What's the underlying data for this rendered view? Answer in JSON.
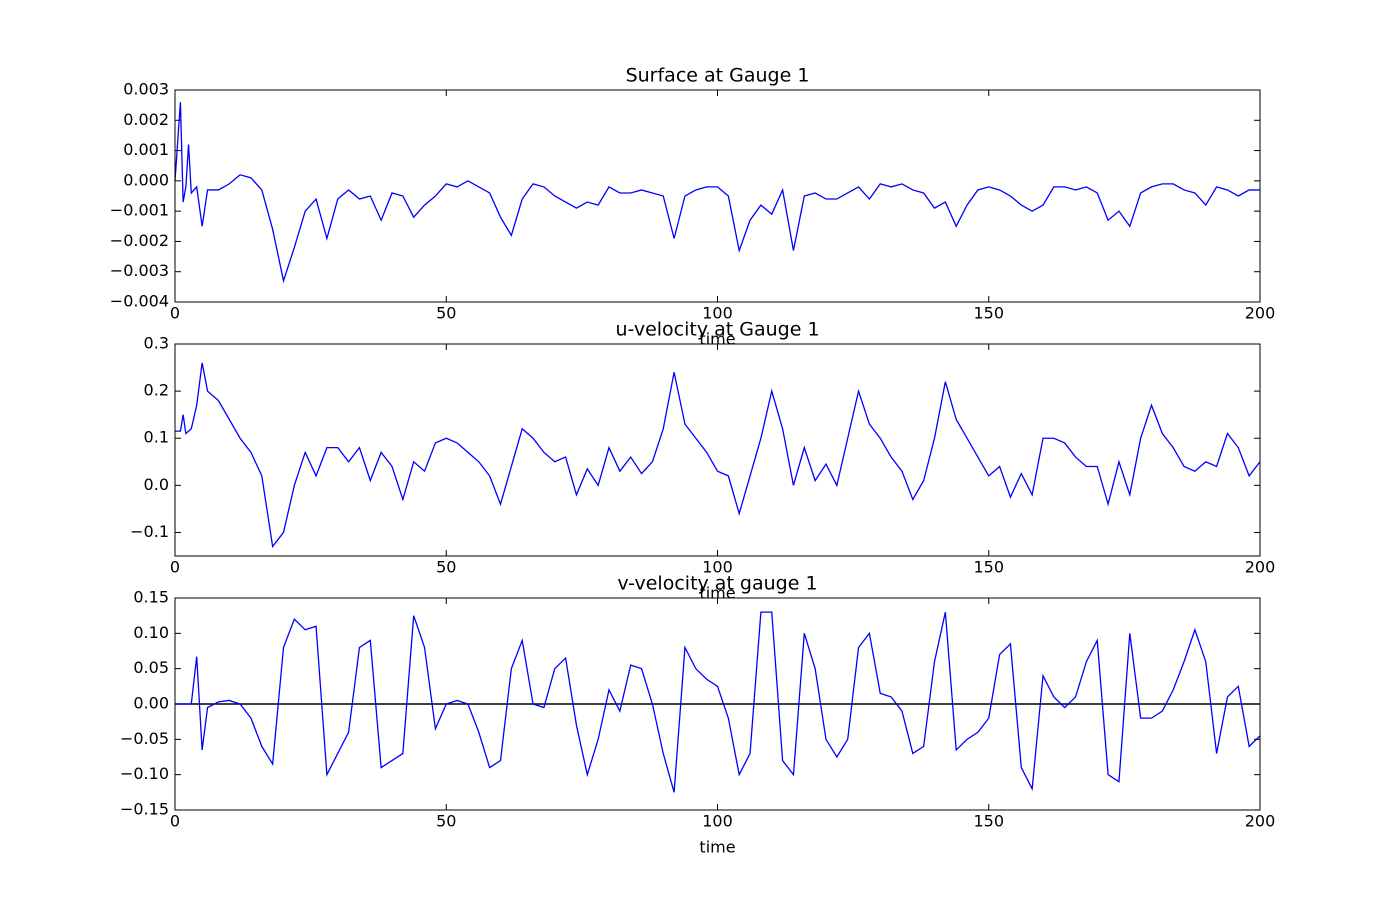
{
  "chart_data": [
    {
      "type": "line",
      "title": "Surface at Gauge 1",
      "xlabel": "time",
      "color": "#0000ff",
      "x": [
        0,
        1,
        1.5,
        2,
        2.5,
        3,
        4,
        5,
        6,
        8,
        10,
        12,
        14,
        16,
        18,
        20,
        22,
        24,
        26,
        28,
        30,
        32,
        34,
        36,
        38,
        40,
        42,
        44,
        46,
        48,
        50,
        52,
        54,
        56,
        58,
        60,
        62,
        64,
        66,
        68,
        70,
        72,
        74,
        76,
        78,
        80,
        82,
        84,
        86,
        88,
        90,
        92,
        94,
        96,
        98,
        100,
        102,
        104,
        106,
        108,
        110,
        112,
        114,
        116,
        118,
        120,
        122,
        124,
        126,
        128,
        130,
        132,
        134,
        136,
        138,
        140,
        142,
        144,
        146,
        148,
        150,
        152,
        154,
        156,
        158,
        160,
        162,
        164,
        166,
        168,
        170,
        172,
        174,
        176,
        178,
        180,
        182,
        184,
        186,
        188,
        190,
        192,
        194,
        196,
        198,
        200
      ],
      "values": [
        0,
        0.0026,
        -0.0007,
        -0.0002,
        0.0012,
        -0.0004,
        -0.0002,
        -0.0015,
        -0.0003,
        -0.0003,
        -0.0001,
        0.0002,
        0.0001,
        -0.0003,
        -0.0016,
        -0.0033,
        -0.0022,
        -0.001,
        -0.0006,
        -0.0019,
        -0.0006,
        -0.0003,
        -0.0006,
        -0.0005,
        -0.0013,
        -0.0004,
        -0.0005,
        -0.0012,
        -0.0008,
        -0.0005,
        -0.0001,
        -0.0002,
        0,
        -0.0002,
        -0.0004,
        -0.0012,
        -0.0018,
        -0.0006,
        -0.0001,
        -0.0002,
        -0.0005,
        -0.0007,
        -0.0009,
        -0.0007,
        -0.0008,
        -0.0002,
        -0.0004,
        -0.0004,
        -0.0003,
        -0.0004,
        -0.0005,
        -0.0019,
        -0.0005,
        -0.0003,
        -0.0002,
        -0.0002,
        -0.0005,
        -0.0023,
        -0.0013,
        -0.0008,
        -0.0011,
        -0.0003,
        -0.0023,
        -0.0005,
        -0.0004,
        -0.0006,
        -0.0006,
        -0.0004,
        -0.0002,
        -0.0006,
        -0.0001,
        -0.0002,
        -0.0001,
        -0.0003,
        -0.0004,
        -0.0009,
        -0.0007,
        -0.0015,
        -0.0008,
        -0.0003,
        -0.0002,
        -0.0003,
        -0.0005,
        -0.0008,
        -0.001,
        -0.0008,
        -0.0002,
        -0.0002,
        -0.0003,
        -0.0002,
        -0.0004,
        -0.0013,
        -0.001,
        -0.0015,
        -0.0004,
        -0.0002,
        -0.0001,
        -0.0001,
        -0.0003,
        -0.0004,
        -0.0008,
        -0.0002,
        -0.0003,
        -0.0005,
        -0.0003,
        -0.0003
      ],
      "xlim": [
        0,
        200
      ],
      "xticks": [
        0,
        50,
        100,
        150,
        200
      ],
      "ylim": [
        -0.004,
        0.003
      ],
      "yticks": [
        {
          "value": -0.004,
          "label": "−0.004"
        },
        {
          "value": -0.003,
          "label": "−0.003"
        },
        {
          "value": -0.002,
          "label": "−0.002"
        },
        {
          "value": -0.001,
          "label": "−0.001"
        },
        {
          "value": 0,
          "label": "0.000"
        },
        {
          "value": 0.001,
          "label": "0.001"
        },
        {
          "value": 0.002,
          "label": "0.002"
        },
        {
          "value": 0.003,
          "label": "0.003"
        }
      ]
    },
    {
      "type": "line",
      "title": "u-velocity at Gauge 1",
      "xlabel": "time",
      "color": "#0000ff",
      "x": [
        0,
        1,
        1.5,
        2,
        2.5,
        3,
        4,
        5,
        6,
        8,
        10,
        12,
        14,
        16,
        18,
        20,
        22,
        24,
        26,
        28,
        30,
        32,
        34,
        36,
        38,
        40,
        42,
        44,
        46,
        48,
        50,
        52,
        54,
        56,
        58,
        60,
        62,
        64,
        66,
        68,
        70,
        72,
        74,
        76,
        78,
        80,
        82,
        84,
        86,
        88,
        90,
        92,
        94,
        96,
        98,
        100,
        102,
        104,
        106,
        108,
        110,
        112,
        114,
        116,
        118,
        120,
        122,
        124,
        126,
        128,
        130,
        132,
        134,
        136,
        138,
        140,
        142,
        144,
        146,
        148,
        150,
        152,
        154,
        156,
        158,
        160,
        162,
        164,
        166,
        168,
        170,
        172,
        174,
        176,
        178,
        180,
        182,
        184,
        186,
        188,
        190,
        192,
        194,
        196,
        198,
        200
      ],
      "values": [
        0.115,
        0.115,
        0.15,
        0.11,
        0.115,
        0.12,
        0.17,
        0.26,
        0.2,
        0.18,
        0.14,
        0.1,
        0.07,
        0.02,
        -0.13,
        -0.1,
        0.0,
        0.07,
        0.02,
        0.08,
        0.08,
        0.05,
        0.08,
        0.01,
        0.07,
        0.04,
        -0.03,
        0.05,
        0.03,
        0.09,
        0.1,
        0.09,
        0.07,
        0.05,
        0.02,
        -0.04,
        0.04,
        0.12,
        0.1,
        0.07,
        0.05,
        0.06,
        -0.02,
        0.035,
        0.0,
        0.08,
        0.03,
        0.06,
        0.025,
        0.05,
        0.12,
        0.24,
        0.13,
        0.1,
        0.07,
        0.03,
        0.02,
        -0.06,
        0.02,
        0.1,
        0.2,
        0.12,
        0.0,
        0.08,
        0.01,
        0.045,
        0.0,
        0.1,
        0.2,
        0.13,
        0.1,
        0.06,
        0.03,
        -0.03,
        0.01,
        0.1,
        0.22,
        0.14,
        0.1,
        0.06,
        0.02,
        0.04,
        -0.025,
        0.025,
        -0.02,
        0.1,
        0.1,
        0.09,
        0.06,
        0.04,
        0.04,
        -0.04,
        0.05,
        -0.02,
        0.1,
        0.17,
        0.11,
        0.08,
        0.04,
        0.03,
        0.05,
        0.04,
        0.11,
        0.08,
        0.02,
        0.05
      ],
      "xlim": [
        0,
        200
      ],
      "xticks": [
        0,
        50,
        100,
        150,
        200
      ],
      "ylim": [
        -0.15,
        0.3
      ],
      "yticks": [
        {
          "value": -0.1,
          "label": "−0.1"
        },
        {
          "value": 0,
          "label": "0.0"
        },
        0.1,
        0.2,
        0.3
      ]
    },
    {
      "type": "line",
      "title": "v-velocity at gauge 1",
      "xlabel": "time",
      "color": "#0000ff",
      "reference_line": 0,
      "reference_color": "#000000",
      "x": [
        0,
        1,
        1.5,
        2,
        2.5,
        3,
        4,
        5,
        6,
        8,
        10,
        12,
        14,
        16,
        18,
        20,
        22,
        24,
        26,
        28,
        30,
        32,
        34,
        36,
        38,
        40,
        42,
        44,
        46,
        48,
        50,
        52,
        54,
        56,
        58,
        60,
        62,
        64,
        66,
        68,
        70,
        72,
        74,
        76,
        78,
        80,
        82,
        84,
        86,
        88,
        90,
        92,
        94,
        96,
        98,
        100,
        102,
        104,
        106,
        108,
        110,
        112,
        114,
        116,
        118,
        120,
        122,
        124,
        126,
        128,
        130,
        132,
        134,
        136,
        138,
        140,
        142,
        144,
        146,
        148,
        150,
        152,
        154,
        156,
        158,
        160,
        162,
        164,
        166,
        168,
        170,
        172,
        174,
        176,
        178,
        180,
        182,
        184,
        186,
        188,
        190,
        192,
        194,
        196,
        198,
        200
      ],
      "values": [
        0,
        0,
        0,
        0,
        0,
        0,
        0.067,
        -0.065,
        -0.005,
        0.003,
        0.005,
        0,
        -0.02,
        -0.06,
        -0.085,
        0.08,
        0.12,
        0.105,
        0.11,
        -0.1,
        -0.07,
        -0.04,
        0.08,
        0.09,
        -0.09,
        -0.08,
        -0.07,
        0.125,
        0.08,
        -0.035,
        0,
        0.005,
        0,
        -0.04,
        -0.09,
        -0.08,
        0.05,
        0.09,
        0,
        -0.005,
        0.05,
        0.065,
        -0.03,
        -0.1,
        -0.05,
        0.02,
        -0.01,
        0.055,
        0.05,
        0,
        -0.07,
        -0.125,
        0.08,
        0.05,
        0.035,
        0.025,
        -0.02,
        -0.1,
        -0.07,
        0.13,
        0.13,
        -0.08,
        -0.1,
        0.1,
        0.05,
        -0.05,
        -0.075,
        -0.05,
        0.08,
        0.1,
        0.015,
        0.01,
        -0.01,
        -0.07,
        -0.06,
        0.06,
        0.13,
        -0.065,
        -0.05,
        -0.04,
        -0.02,
        0.07,
        0.085,
        -0.09,
        -0.12,
        0.04,
        0.01,
        -0.005,
        0.01,
        0.06,
        0.09,
        -0.1,
        -0.11,
        0.1,
        -0.02,
        -0.02,
        -0.01,
        0.02,
        0.06,
        0.105,
        0.06,
        -0.07,
        0.01,
        0.025,
        -0.06,
        -0.045
      ],
      "xlim": [
        0,
        200
      ],
      "xticks": [
        0,
        50,
        100,
        150,
        200
      ],
      "ylim": [
        -0.15,
        0.15
      ],
      "yticks": [
        {
          "value": -0.15,
          "label": "−0.15"
        },
        {
          "value": -0.1,
          "label": "−0.10"
        },
        {
          "value": -0.05,
          "label": "−0.05"
        },
        {
          "value": 0,
          "label": "0.00"
        },
        {
          "value": 0.05,
          "label": "0.05"
        },
        {
          "value": 0.1,
          "label": "0.10"
        },
        {
          "value": 0.15,
          "label": "0.15"
        }
      ]
    }
  ]
}
